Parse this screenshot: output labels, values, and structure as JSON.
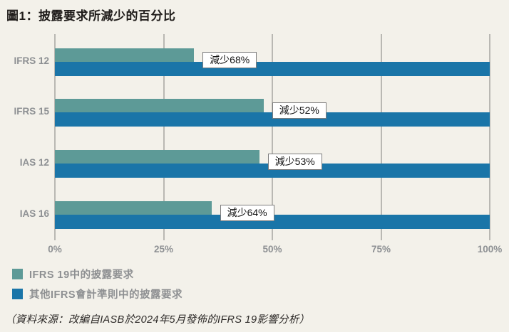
{
  "page": {
    "background_color": "#f3f1ea",
    "gridline_color": "#b9b8b3",
    "axis_text_color": "#8d9093"
  },
  "chart_data": {
    "type": "bar",
    "orientation": "horizontal",
    "title": "圖1：披露要求所減少的百分比",
    "categories": [
      "IFRS 12",
      "IFRS 15",
      "IAS 12",
      "IAS 16"
    ],
    "series": [
      {
        "name": "IFRS 19中的披露要求",
        "color": "#5d9a97",
        "values": [
          32,
          48,
          47,
          36
        ]
      },
      {
        "name": "其他IFRS會計準則中的披露要求",
        "color": "#1a75a8",
        "values": [
          100,
          100,
          100,
          100
        ]
      }
    ],
    "bar_labels": [
      "減少68%",
      "減少52%",
      "減少53%",
      "減少64%"
    ],
    "x_tick_labels": [
      "0%",
      "25%",
      "50%",
      "75%",
      "100%"
    ],
    "x_tick_values": [
      0,
      25,
      50,
      75,
      100
    ],
    "xlim": [
      0,
      100
    ],
    "grid": "vertical",
    "legend_position": "bottom-left",
    "source": "（資料來源：改編自IASB於2024年5月發佈的IFRS 19影響分析）"
  }
}
